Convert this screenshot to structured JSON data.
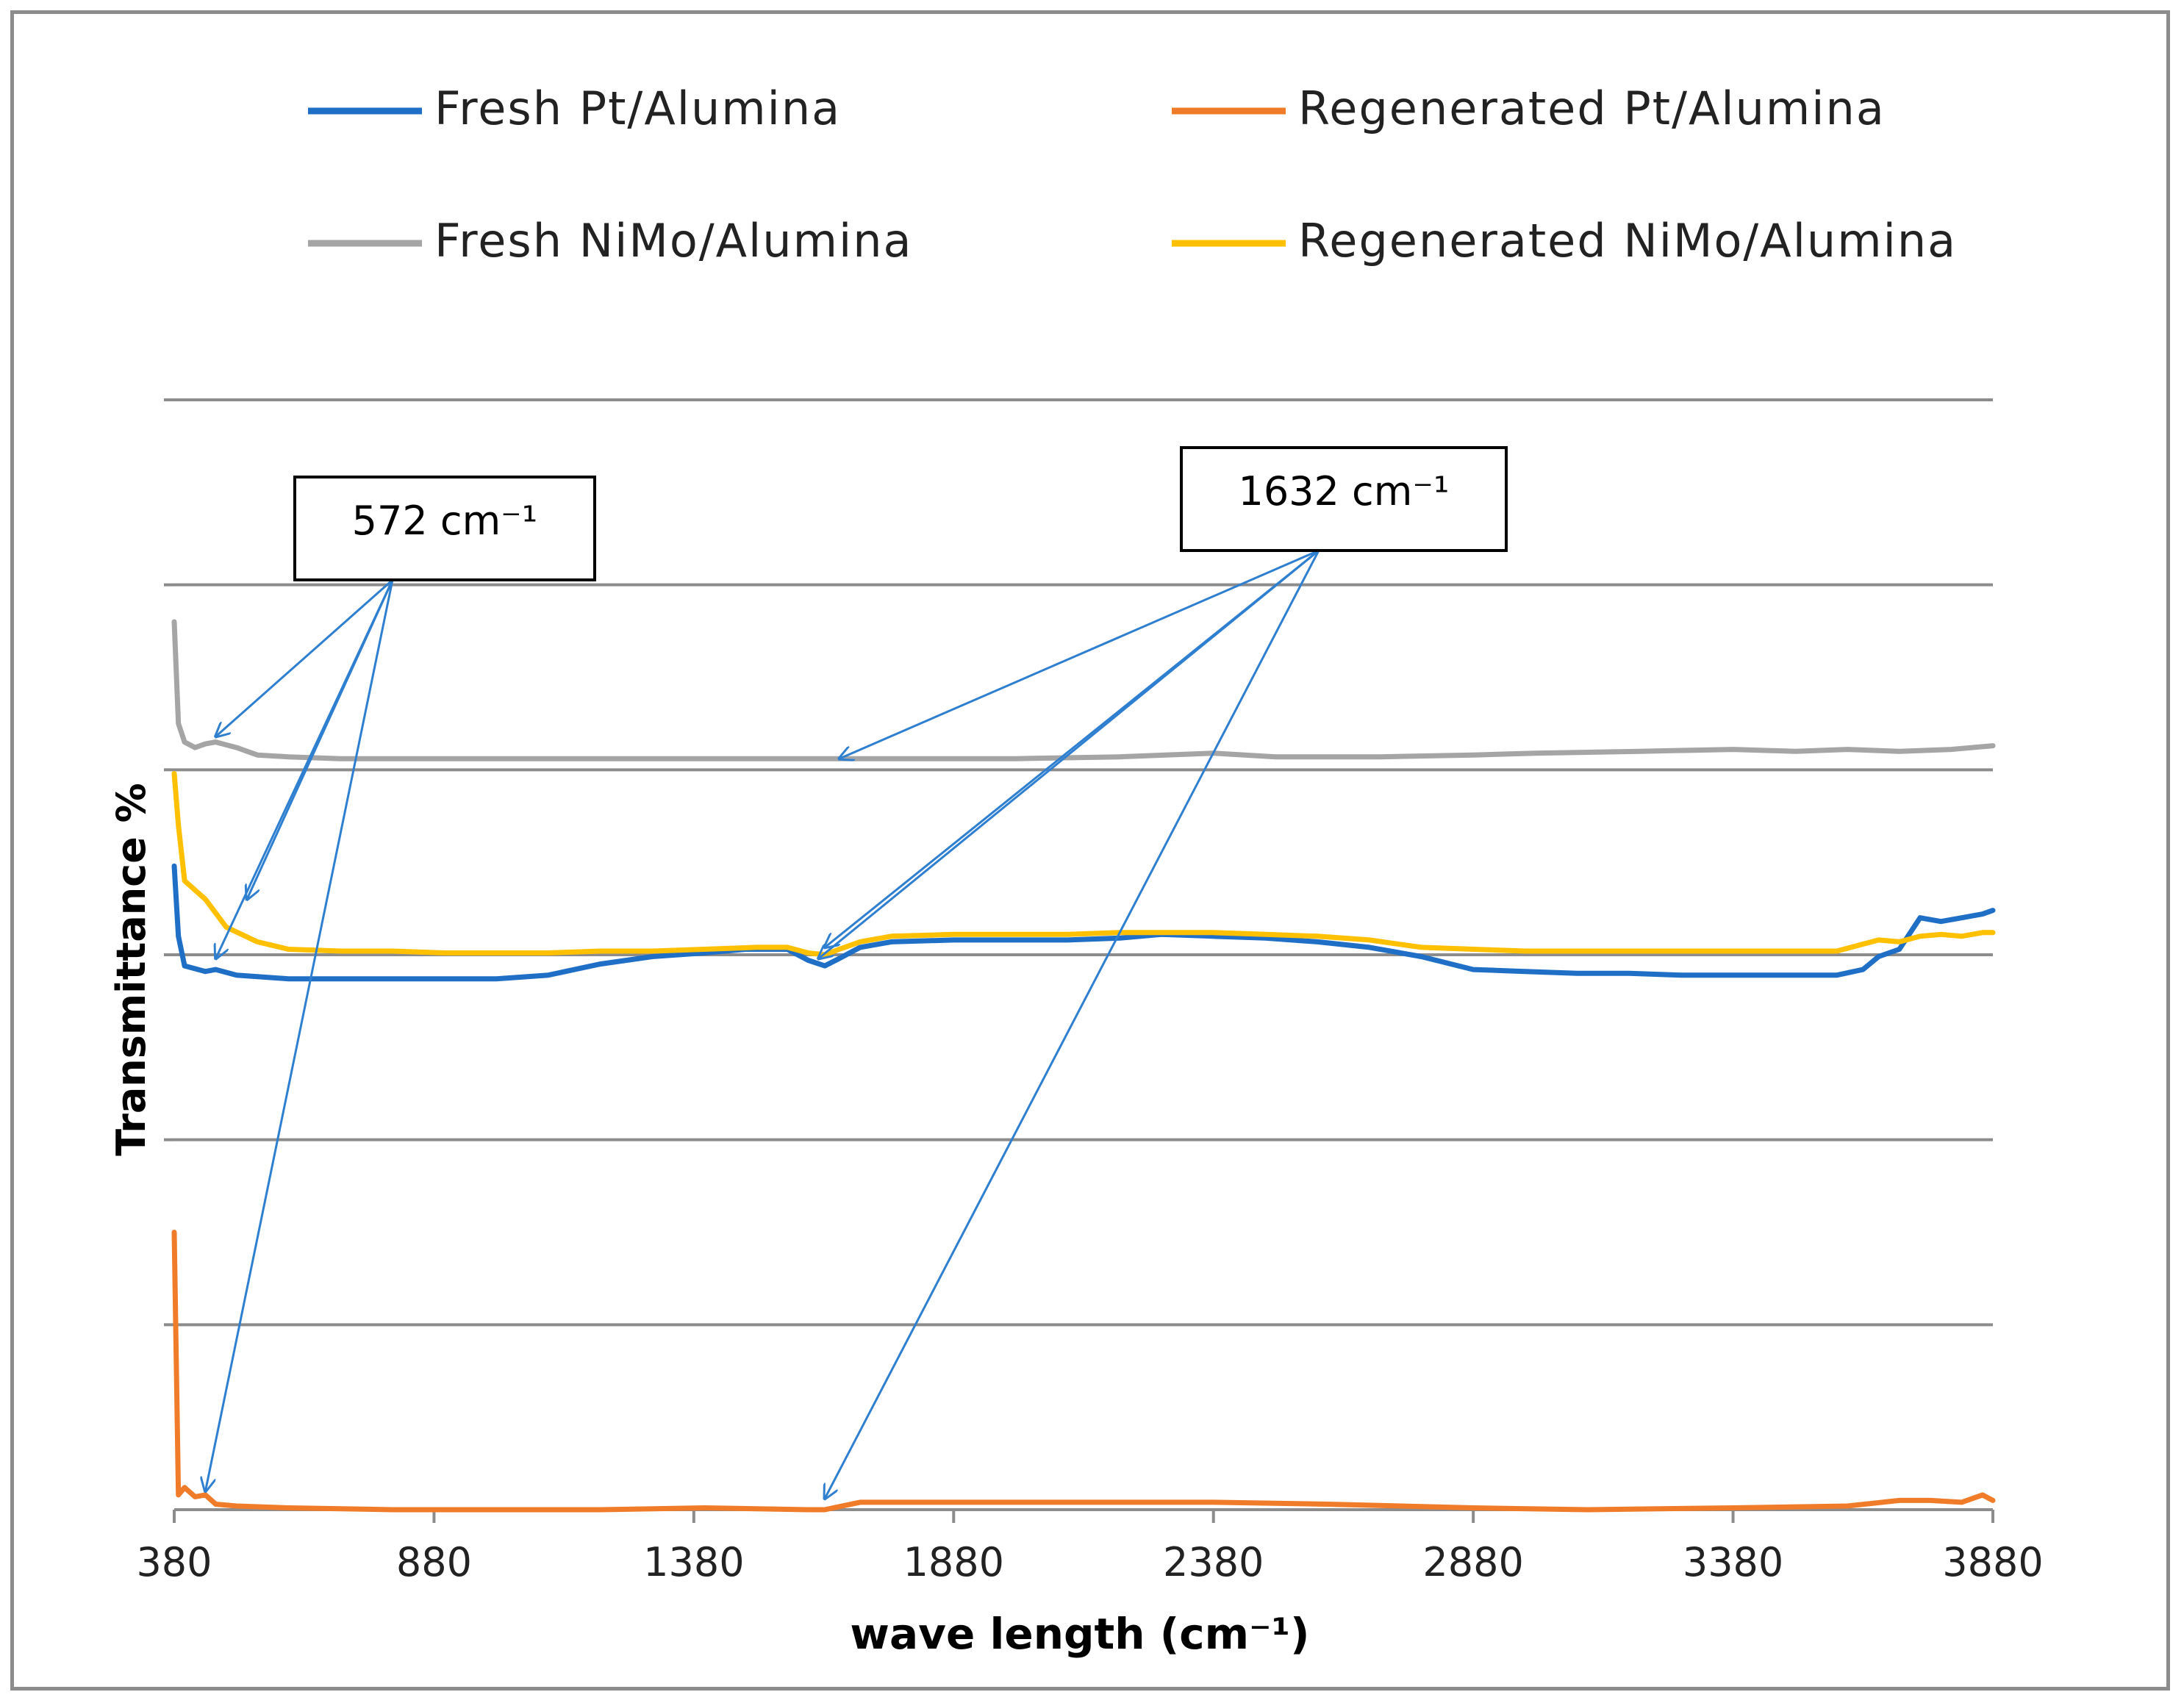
{
  "chart_data": {
    "type": "line",
    "title": "",
    "xlabel": "wave length (cm⁻¹)",
    "ylabel": "Transmittance %",
    "xlim": [
      380,
      3880
    ],
    "xticks": [
      "380",
      "880",
      "1380",
      "1880",
      "2380",
      "2880",
      "3380",
      "3880"
    ],
    "ylim": [
      0,
      6
    ],
    "grid": true,
    "legend_position": "top",
    "y_tick_labels_shown": false,
    "series": [
      {
        "name": "Fresh Pt/Alumina",
        "color": "#1f6fc6",
        "points": [
          [
            380,
            3.48
          ],
          [
            388,
            3.1
          ],
          [
            400,
            2.94
          ],
          [
            440,
            2.91
          ],
          [
            460,
            2.92
          ],
          [
            500,
            2.89
          ],
          [
            600,
            2.87
          ],
          [
            700,
            2.87
          ],
          [
            800,
            2.87
          ],
          [
            900,
            2.87
          ],
          [
            1000,
            2.87
          ],
          [
            1100,
            2.89
          ],
          [
            1200,
            2.95
          ],
          [
            1300,
            2.99
          ],
          [
            1400,
            3.01
          ],
          [
            1480,
            3.03
          ],
          [
            1560,
            3.03
          ],
          [
            1600,
            2.97
          ],
          [
            1632,
            2.94
          ],
          [
            1660,
            2.98
          ],
          [
            1700,
            3.04
          ],
          [
            1760,
            3.07
          ],
          [
            1880,
            3.08
          ],
          [
            2000,
            3.08
          ],
          [
            2100,
            3.08
          ],
          [
            2200,
            3.09
          ],
          [
            2280,
            3.11
          ],
          [
            2380,
            3.1
          ],
          [
            2480,
            3.09
          ],
          [
            2580,
            3.07
          ],
          [
            2680,
            3.04
          ],
          [
            2780,
            2.99
          ],
          [
            2880,
            2.92
          ],
          [
            2980,
            2.91
          ],
          [
            3080,
            2.9
          ],
          [
            3180,
            2.9
          ],
          [
            3280,
            2.89
          ],
          [
            3380,
            2.89
          ],
          [
            3480,
            2.89
          ],
          [
            3580,
            2.89
          ],
          [
            3630,
            2.92
          ],
          [
            3660,
            2.99
          ],
          [
            3700,
            3.03
          ],
          [
            3740,
            3.2
          ],
          [
            3780,
            3.18
          ],
          [
            3820,
            3.2
          ],
          [
            3860,
            3.22
          ],
          [
            3880,
            3.24
          ]
        ]
      },
      {
        "name": "Regenerated Pt/Alumina",
        "color": "#f07c2a",
        "points": [
          [
            380,
            1.5
          ],
          [
            388,
            0.08
          ],
          [
            400,
            0.12
          ],
          [
            420,
            0.07
          ],
          [
            440,
            0.08
          ],
          [
            460,
            0.03
          ],
          [
            500,
            0.02
          ],
          [
            600,
            0.01
          ],
          [
            800,
            0.0
          ],
          [
            1000,
            0.0
          ],
          [
            1200,
            0.0
          ],
          [
            1400,
            0.01
          ],
          [
            1600,
            0.0
          ],
          [
            1632,
            0.0
          ],
          [
            1700,
            0.04
          ],
          [
            1880,
            0.04
          ],
          [
            2100,
            0.04
          ],
          [
            2380,
            0.04
          ],
          [
            2600,
            0.03
          ],
          [
            2880,
            0.01
          ],
          [
            3100,
            0.0
          ],
          [
            3380,
            0.01
          ],
          [
            3600,
            0.02
          ],
          [
            3700,
            0.05
          ],
          [
            3760,
            0.05
          ],
          [
            3820,
            0.04
          ],
          [
            3860,
            0.08
          ],
          [
            3880,
            0.05
          ]
        ]
      },
      {
        "name": "Fresh NiMo/Alumina",
        "color": "#a5a5a5",
        "points": [
          [
            380,
            4.8
          ],
          [
            388,
            4.25
          ],
          [
            400,
            4.15
          ],
          [
            420,
            4.12
          ],
          [
            440,
            4.14
          ],
          [
            460,
            4.15
          ],
          [
            500,
            4.12
          ],
          [
            540,
            4.08
          ],
          [
            600,
            4.07
          ],
          [
            700,
            4.06
          ],
          [
            800,
            4.06
          ],
          [
            1000,
            4.06
          ],
          [
            1200,
            4.06
          ],
          [
            1400,
            4.06
          ],
          [
            1632,
            4.06
          ],
          [
            1800,
            4.06
          ],
          [
            2000,
            4.06
          ],
          [
            2200,
            4.07
          ],
          [
            2380,
            4.09
          ],
          [
            2500,
            4.07
          ],
          [
            2700,
            4.07
          ],
          [
            2880,
            4.08
          ],
          [
            3000,
            4.09
          ],
          [
            3200,
            4.1
          ],
          [
            3380,
            4.11
          ],
          [
            3500,
            4.1
          ],
          [
            3600,
            4.11
          ],
          [
            3700,
            4.1
          ],
          [
            3800,
            4.11
          ],
          [
            3880,
            4.13
          ]
        ]
      },
      {
        "name": "Regenerated NiMo/Alumina",
        "color": "#ffc000",
        "points": [
          [
            380,
            3.98
          ],
          [
            388,
            3.7
          ],
          [
            400,
            3.4
          ],
          [
            440,
            3.3
          ],
          [
            480,
            3.15
          ],
          [
            540,
            3.07
          ],
          [
            600,
            3.03
          ],
          [
            700,
            3.02
          ],
          [
            800,
            3.02
          ],
          [
            900,
            3.01
          ],
          [
            1000,
            3.01
          ],
          [
            1100,
            3.01
          ],
          [
            1200,
            3.02
          ],
          [
            1300,
            3.02
          ],
          [
            1400,
            3.03
          ],
          [
            1500,
            3.04
          ],
          [
            1560,
            3.04
          ],
          [
            1600,
            3.01
          ],
          [
            1632,
            3.0
          ],
          [
            1660,
            3.03
          ],
          [
            1700,
            3.07
          ],
          [
            1760,
            3.1
          ],
          [
            1880,
            3.11
          ],
          [
            2000,
            3.11
          ],
          [
            2100,
            3.11
          ],
          [
            2200,
            3.12
          ],
          [
            2380,
            3.12
          ],
          [
            2480,
            3.11
          ],
          [
            2580,
            3.1
          ],
          [
            2680,
            3.08
          ],
          [
            2780,
            3.04
          ],
          [
            2880,
            3.03
          ],
          [
            2980,
            3.02
          ],
          [
            3080,
            3.02
          ],
          [
            3180,
            3.02
          ],
          [
            3280,
            3.02
          ],
          [
            3380,
            3.02
          ],
          [
            3480,
            3.02
          ],
          [
            3580,
            3.02
          ],
          [
            3620,
            3.05
          ],
          [
            3660,
            3.08
          ],
          [
            3700,
            3.07
          ],
          [
            3740,
            3.1
          ],
          [
            3780,
            3.11
          ],
          [
            3820,
            3.1
          ],
          [
            3860,
            3.12
          ],
          [
            3880,
            3.12
          ]
        ]
      }
    ],
    "annotations": [
      {
        "label": "572 cm⁻¹",
        "targets": [
          [
            460,
            4.18
          ],
          [
            520,
            3.3
          ],
          [
            460,
            2.98
          ],
          [
            440,
            0.1
          ]
        ]
      },
      {
        "label": "1632 cm⁻¹",
        "targets": [
          [
            1660,
            4.06
          ],
          [
            1632,
            3.04
          ],
          [
            1620,
            2.98
          ],
          [
            1632,
            0.06
          ]
        ]
      }
    ]
  }
}
